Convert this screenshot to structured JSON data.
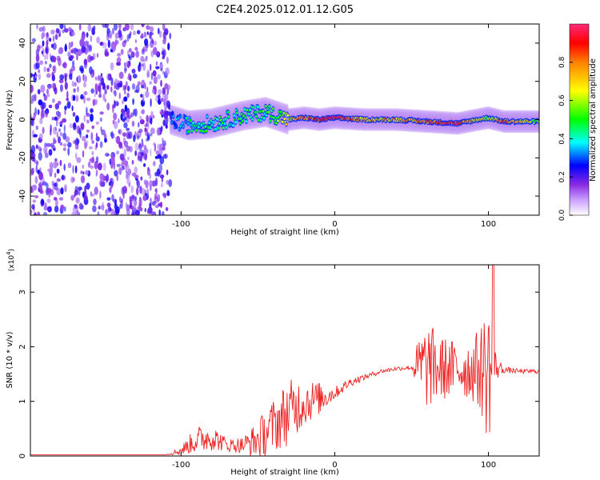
{
  "title": "C2E4.2025.012.01.12.G05",
  "chart_data": [
    {
      "type": "heatmap",
      "xlabel": "Height of straight line (km)",
      "ylabel": "Frequency (Hz)",
      "xlim": [
        -198,
        133
      ],
      "ylim": [
        -50,
        50
      ],
      "x_ticks": [
        -100,
        0,
        100
      ],
      "x_tick_labels": [
        "-100",
        "0",
        "100"
      ],
      "y_ticks": [
        -40,
        -20,
        0,
        20,
        40
      ],
      "y_tick_labels": [
        "-40",
        "-20",
        "0",
        "20",
        "40"
      ],
      "colorbar": {
        "label": "Normalized spectral amplitude",
        "range": [
          0,
          1
        ],
        "ticks": [
          0,
          0.2,
          0.4,
          0.6,
          0.8
        ],
        "tick_labels": [
          "0.0",
          "0.2",
          "0.4",
          "0.6",
          "0.8"
        ],
        "colormap": [
          "#ffffff",
          "#8a2be2",
          "#0000ff",
          "#00ffff",
          "#00ff00",
          "#ffff00",
          "#ff8000",
          "#ff0000",
          "#ff1493"
        ]
      },
      "ridge": {
        "x": [
          -107,
          -95,
          -80,
          -60,
          -45,
          -30,
          -20,
          -10,
          0,
          20,
          40,
          60,
          80,
          100,
          110,
          133
        ],
        "freq": [
          0,
          -3,
          -2,
          2,
          4,
          0,
          1,
          0,
          1,
          0,
          0,
          -1,
          -2,
          1,
          -1,
          -1
        ],
        "amplitude": [
          0.3,
          0.45,
          0.5,
          0.5,
          0.5,
          0.7,
          0.8,
          0.9,
          0.95,
          0.75,
          0.75,
          0.85,
          0.9,
          0.6,
          0.9,
          0.6
        ]
      },
      "noise_region_x": [
        -198,
        -107
      ]
    },
    {
      "type": "line",
      "xlabel": "Height of straight line (km)",
      "ylabel": "SNR (10 * v/v)",
      "scale_label": "(x10",
      "scale_exponent": "4",
      "xlim": [
        -198,
        133
      ],
      "ylim": [
        0,
        3.5
      ],
      "x_ticks": [
        -100,
        0,
        100
      ],
      "x_tick_labels": [
        "-100",
        "0",
        "100"
      ],
      "y_ticks": [
        0,
        1,
        2,
        3
      ],
      "y_tick_labels": [
        "0",
        "1",
        "2",
        "3"
      ],
      "line_color": "#ee2222",
      "x": [
        -198,
        -110,
        -100,
        -90,
        -80,
        -70,
        -60,
        -50,
        -40,
        -30,
        -20,
        -10,
        0,
        10,
        20,
        30,
        40,
        50,
        55,
        60,
        70,
        80,
        90,
        95,
        100,
        103,
        105,
        110,
        120,
        133
      ],
      "y": [
        0.02,
        0.02,
        0.1,
        0.3,
        0.35,
        0.2,
        0.2,
        0.3,
        0.55,
        0.8,
        1.0,
        1.05,
        1.15,
        1.35,
        1.45,
        1.55,
        1.6,
        1.62,
        1.63,
        1.65,
        1.6,
        1.6,
        1.58,
        1.6,
        1.55,
        1.6,
        1.62,
        1.58,
        1.55,
        1.55
      ],
      "noise": [
        0,
        0,
        0.08,
        0.25,
        0.25,
        0.12,
        0.15,
        0.35,
        0.5,
        0.6,
        0.45,
        0.3,
        0.12,
        0.08,
        0.05,
        0.04,
        0.04,
        0.04,
        0.6,
        0.8,
        0.6,
        0.5,
        0.6,
        0.8,
        1.4,
        0.6,
        0.25,
        0.06,
        0.04,
        0.04
      ],
      "spike": {
        "x": 103,
        "y": 3.5
      }
    }
  ]
}
